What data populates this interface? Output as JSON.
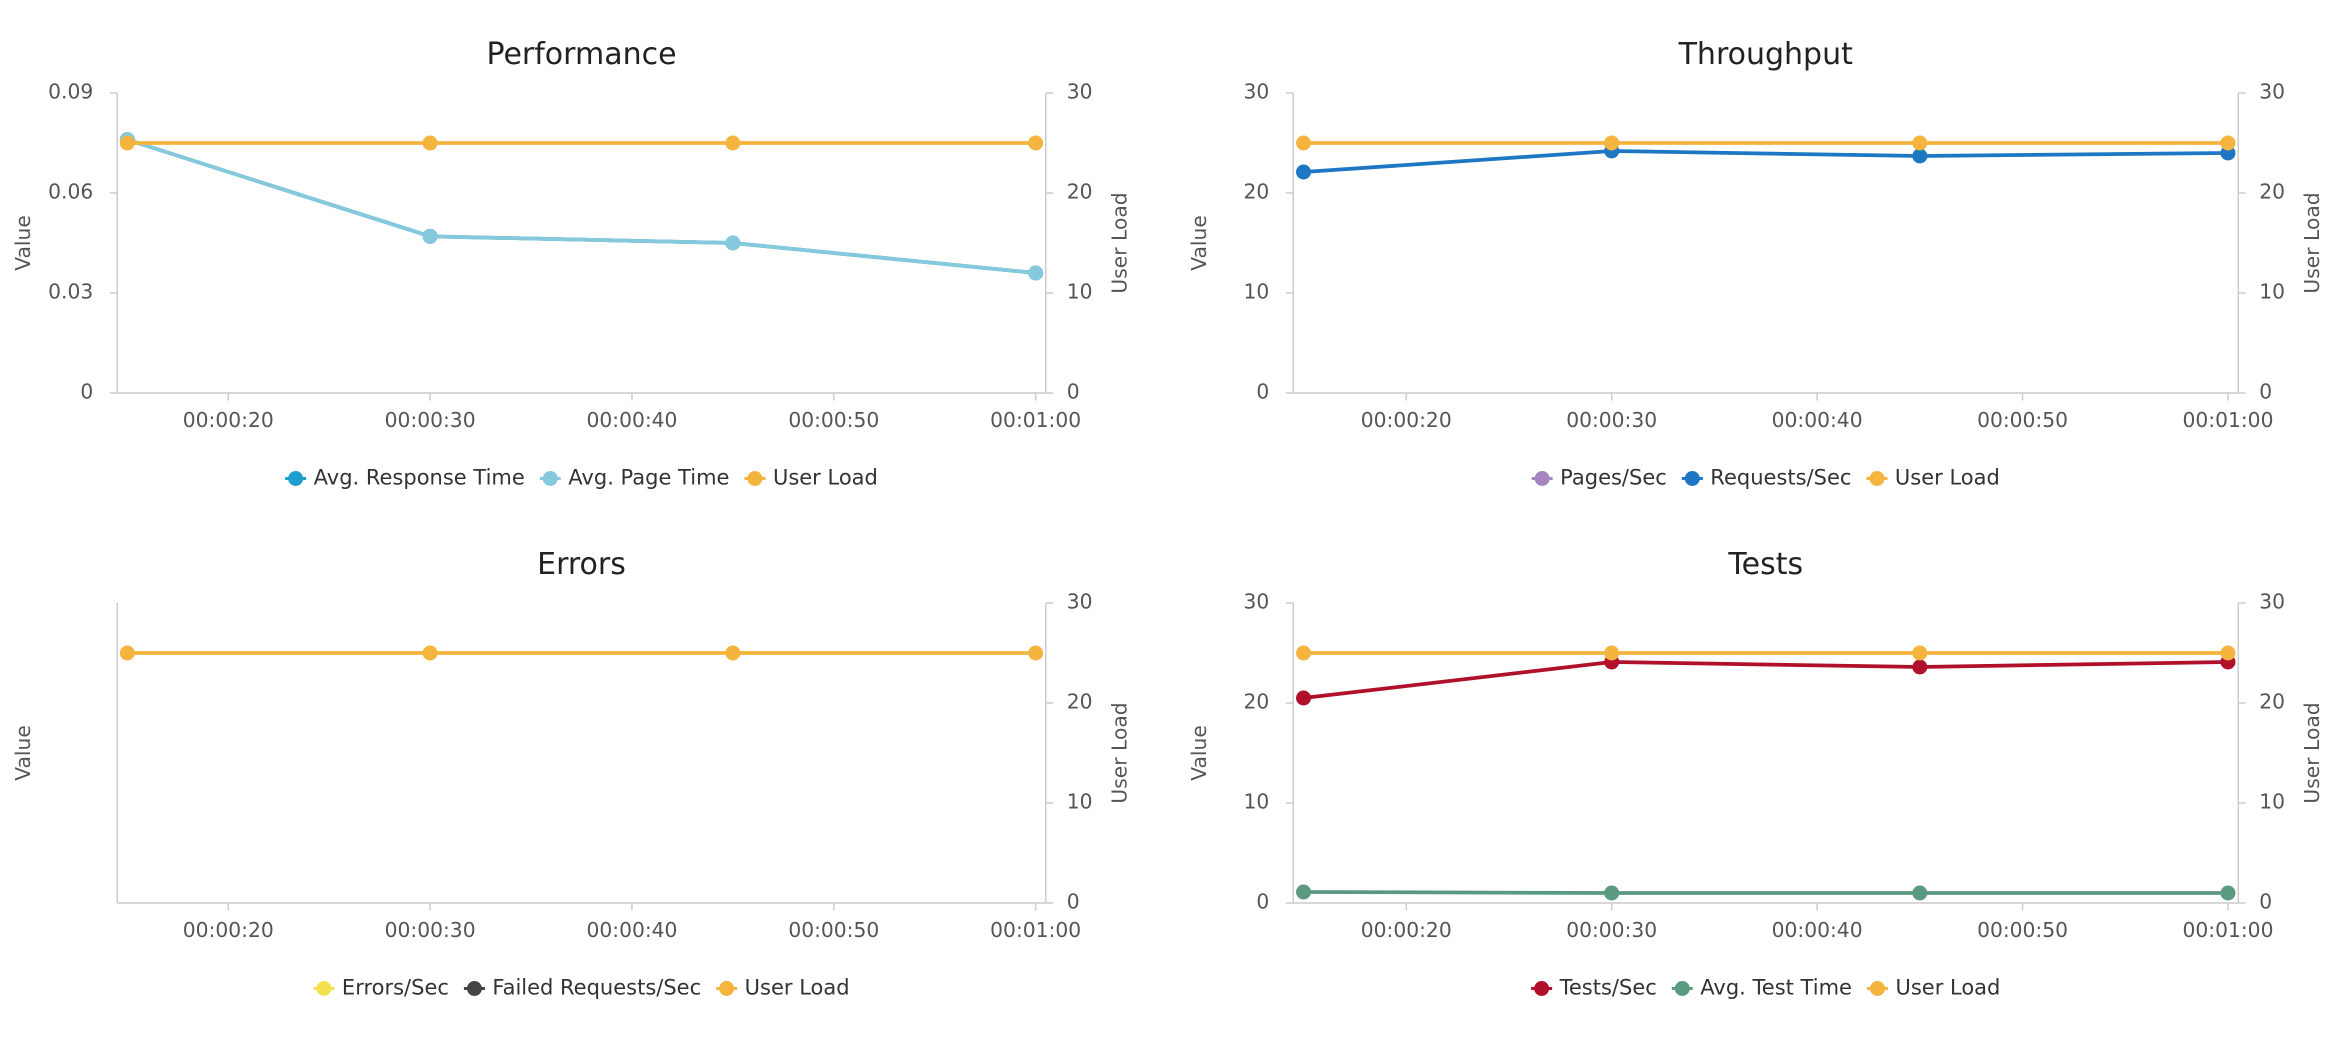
{
  "chart_data": [
    {
      "type": "line",
      "title": "Performance",
      "ylabel": "Value",
      "y2label": "User Load",
      "x": [
        15,
        30,
        45,
        60
      ],
      "xlim": [
        14.5,
        60.5
      ],
      "xticks": [
        {
          "value": 20,
          "label": "00:00:20"
        },
        {
          "value": 30,
          "label": "00:00:30"
        },
        {
          "value": 40,
          "label": "00:00:40"
        },
        {
          "value": 50,
          "label": "00:00:50"
        },
        {
          "value": 60,
          "label": "00:01:00"
        }
      ],
      "ylim": [
        0,
        0.09
      ],
      "yticks": [
        0,
        0.03,
        0.06,
        0.09
      ],
      "y2lim": [
        0,
        30
      ],
      "y2ticks": [
        0,
        10,
        20,
        30
      ],
      "series": [
        {
          "name": "Avg. Response Time",
          "color": "#1f9ed0",
          "values": [
            0.076,
            0.047,
            0.045,
            0.036
          ]
        },
        {
          "name": "Avg. Page Time",
          "color": "#86c9dc",
          "values": [
            0.076,
            0.047,
            0.045,
            0.036
          ]
        },
        {
          "name": "User Load",
          "color": "#f5b43e",
          "axis": "y2",
          "values": [
            25,
            25,
            25,
            25
          ]
        }
      ]
    },
    {
      "type": "line",
      "title": "Throughput",
      "ylabel": "Value",
      "y2label": "User Load",
      "x": [
        15,
        30,
        45,
        60
      ],
      "xlim": [
        14.5,
        60.5
      ],
      "xticks": [
        {
          "value": 20,
          "label": "00:00:20"
        },
        {
          "value": 30,
          "label": "00:00:30"
        },
        {
          "value": 40,
          "label": "00:00:40"
        },
        {
          "value": 50,
          "label": "00:00:50"
        },
        {
          "value": 60,
          "label": "00:01:00"
        }
      ],
      "ylim": [
        0,
        30
      ],
      "yticks": [
        0,
        10,
        20,
        30
      ],
      "y2lim": [
        0,
        30
      ],
      "y2ticks": [
        0,
        10,
        20,
        30
      ],
      "series": [
        {
          "name": "Pages/Sec",
          "color": "#a686c0",
          "values": [
            null,
            null,
            null,
            null
          ]
        },
        {
          "name": "Requests/Sec",
          "color": "#1e77c2",
          "values": [
            22.1,
            24.2,
            23.7,
            24.0
          ]
        },
        {
          "name": "User Load",
          "color": "#f5b43e",
          "axis": "y2",
          "values": [
            25,
            25,
            25,
            25
          ]
        }
      ]
    },
    {
      "type": "line",
      "title": "Errors",
      "ylabel": "Value",
      "y2label": "User Load",
      "x": [
        15,
        30,
        45,
        60
      ],
      "xlim": [
        14.5,
        60.5
      ],
      "xticks": [
        {
          "value": 20,
          "label": "00:00:20"
        },
        {
          "value": 30,
          "label": "00:00:30"
        },
        {
          "value": 40,
          "label": "00:00:40"
        },
        {
          "value": 50,
          "label": "00:00:50"
        },
        {
          "value": 60,
          "label": "00:01:00"
        }
      ],
      "y2lim": [
        0,
        30
      ],
      "y2ticks": [
        0,
        10,
        20,
        30
      ],
      "series": [
        {
          "name": "Errors/Sec",
          "color": "#f5e050",
          "values": [
            null,
            null,
            null,
            null
          ]
        },
        {
          "name": "Failed Requests/Sec",
          "color": "#444444",
          "values": [
            null,
            null,
            null,
            null
          ]
        },
        {
          "name": "User Load",
          "color": "#f5b43e",
          "axis": "y2",
          "values": [
            25,
            25,
            25,
            25
          ]
        }
      ]
    },
    {
      "type": "line",
      "title": "Tests",
      "ylabel": "Value",
      "y2label": "User Load",
      "x": [
        15,
        30,
        45,
        60
      ],
      "xlim": [
        14.5,
        60.5
      ],
      "xticks": [
        {
          "value": 20,
          "label": "00:00:20"
        },
        {
          "value": 30,
          "label": "00:00:30"
        },
        {
          "value": 40,
          "label": "00:00:40"
        },
        {
          "value": 50,
          "label": "00:00:50"
        },
        {
          "value": 60,
          "label": "00:01:00"
        }
      ],
      "ylim": [
        0,
        30
      ],
      "yticks": [
        0,
        10,
        20,
        30
      ],
      "y2lim": [
        0,
        30
      ],
      "y2ticks": [
        0,
        10,
        20,
        30
      ],
      "series": [
        {
          "name": "Tests/Sec",
          "color": "#b0102a",
          "values": [
            20.5,
            24.1,
            23.6,
            24.1
          ]
        },
        {
          "name": "Avg. Test Time",
          "color": "#5a9a80",
          "values": [
            1.1,
            1.0,
            1.0,
            1.0
          ]
        },
        {
          "name": "User Load",
          "color": "#f5b43e",
          "axis": "y2",
          "values": [
            25,
            25,
            25,
            25
          ]
        }
      ]
    }
  ]
}
